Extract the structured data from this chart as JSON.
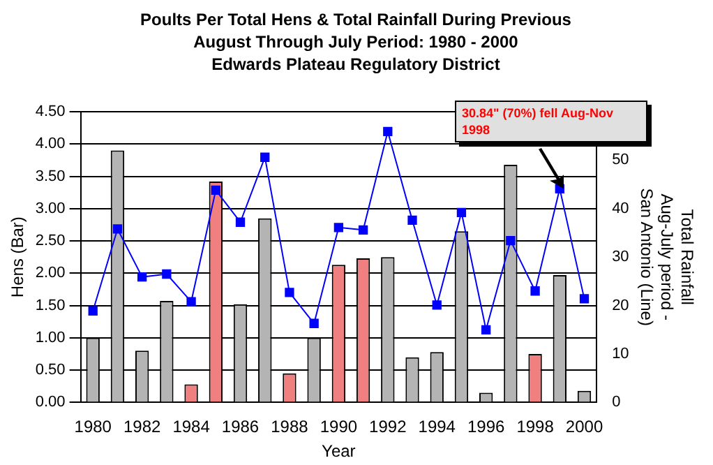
{
  "chart_data": {
    "type": "bar",
    "title": "Poults Per Total Hens & Total Rainfall During Previous August Through July Period: 1980 - 2000",
    "subtitle": "Edwards Plateau Regulatory District",
    "xlabel": "Year",
    "ylabel": "Hens (Bar)",
    "y2label": "Total Rainfall Aug-July period - San Antonio (Line)",
    "annotations": [
      "30.84\" (70%) fell Aug-Nov 1998"
    ],
    "categories": [
      "1980",
      null,
      "1982",
      null,
      "1984",
      null,
      "1986",
      null,
      "1988",
      null,
      "1990",
      null,
      "1992",
      null,
      "1994",
      null,
      "1996",
      null,
      "1998",
      null,
      "2000"
    ],
    "series": [
      {
        "colors": [
          "#b4b4b4",
          "#b4b4b4",
          "#b4b4b4",
          "#b4b4b4",
          "#f08080",
          "#f08080",
          "#b4b4b4",
          "#b4b4b4",
          "#f08080",
          "#b4b4b4",
          "#f08080",
          "#f08080",
          "#b4b4b4",
          "#b4b4b4",
          "#b4b4b4",
          "#b4b4b4",
          "#b4b4b4",
          "#b4b4b4",
          "#f08080",
          "#b4b4b4",
          "#b4b4b4"
        ],
        "values": [
          1.0,
          3.9,
          0.8,
          1.57,
          0.28,
          3.42,
          1.52,
          2.85,
          0.45,
          1.0,
          2.13,
          2.23,
          2.25,
          0.7,
          0.78,
          2.65,
          0.15,
          3.68,
          0.75,
          1.97,
          0.18
        ]
      },
      {
        "type": "line",
        "axis": "y2",
        "color": "#0000ff",
        "values": [
          18.9,
          35.8,
          25.9,
          26.5,
          20.8,
          43.8,
          37.2,
          50.6,
          22.7,
          16.3,
          36.1,
          35.6,
          55.9,
          37.6,
          20.1,
          39.2,
          15.0,
          33.4,
          23.0,
          44.1,
          21.4
        ]
      }
    ],
    "ylim": [
      0,
      4.5
    ],
    "yticks": [
      {
        "value": 0,
        "label": "0.00"
      },
      {
        "value": 0.5,
        "label": "0.50"
      },
      {
        "value": 1,
        "label": "1.00"
      },
      {
        "value": 1.5,
        "label": "1.50"
      },
      {
        "value": 2,
        "label": "2.00"
      },
      {
        "value": 2.5,
        "label": "2.50"
      },
      {
        "value": 3,
        "label": "3.00"
      },
      {
        "value": 3.5,
        "label": "3.50"
      },
      {
        "value": 4,
        "label": "4.00"
      },
      {
        "value": 4.5,
        "label": "4.50"
      }
    ],
    "y2lim": [
      0,
      60
    ],
    "y2ticks": [
      0,
      10,
      20,
      30,
      40,
      50
    ],
    "grid": "y",
    "legend": false,
    "marker": "square",
    "line_style": "solid"
  }
}
